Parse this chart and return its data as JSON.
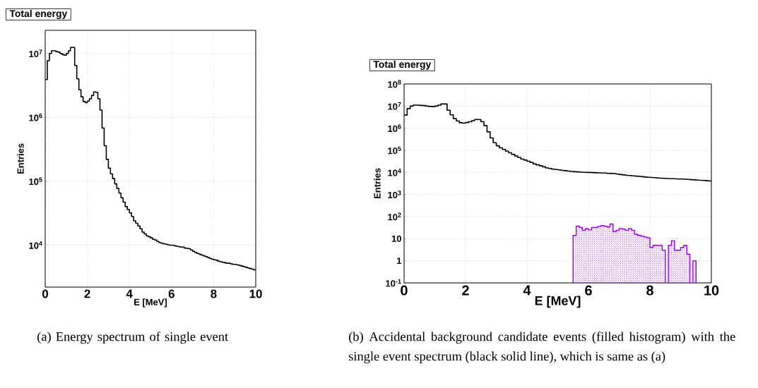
{
  "chart_data": [
    {
      "type": "step",
      "title": "Total energy",
      "xlabel": "E [MeV]",
      "ylabel": "Entries",
      "color": "#000000",
      "x": [
        0,
        0.1,
        0.2,
        0.3,
        0.4,
        0.5,
        0.6,
        0.7,
        0.8,
        0.9,
        1,
        1.1,
        1.2,
        1.3,
        1.4,
        1.5,
        1.6,
        1.7,
        1.8,
        1.9,
        2,
        2.1,
        2.2,
        2.3,
        2.4,
        2.5,
        2.6,
        2.7,
        2.8,
        2.9,
        3,
        3.1,
        3.2,
        3.3,
        3.4,
        3.5,
        3.6,
        3.7,
        3.8,
        3.9,
        4,
        4.1,
        4.2,
        4.3,
        4.4,
        4.5,
        4.6,
        4.7,
        4.8,
        4.9,
        5,
        5.1,
        5.2,
        5.3,
        5.4,
        5.5,
        5.6,
        5.7,
        5.8,
        5.9,
        6,
        6.1,
        6.2,
        6.3,
        6.4,
        6.5,
        6.6,
        6.7,
        6.8,
        6.9,
        7,
        7.1,
        7.2,
        7.3,
        7.4,
        7.5,
        7.6,
        7.7,
        7.8,
        7.9,
        8,
        8.1,
        8.2,
        8.3,
        8.4,
        8.5,
        8.6,
        8.7,
        8.8,
        8.9,
        9,
        9.1,
        9.2,
        9.3,
        9.4,
        9.5,
        9.6,
        9.7,
        9.8,
        9.9,
        10
      ],
      "values": [
        3900000.0,
        7700000.0,
        10000000.0,
        11000000.0,
        11000000.0,
        10700000.0,
        10500000.0,
        10000000.0,
        9600000.0,
        9400000.0,
        10000000.0,
        11000000.0,
        12400000.0,
        12400000.0,
        6500000.0,
        4000000.0,
        2700000.0,
        2100000.0,
        1770000.0,
        1700000.0,
        1800000.0,
        1950000.0,
        2200000.0,
        2500000.0,
        2450000.0,
        1950000.0,
        1300000.0,
        680000.0,
        360000.0,
        220000.0,
        160000.0,
        130000.0,
        110000.0,
        91000.0,
        77000.0,
        65000.0,
        55000.0,
        47000.0,
        40000.0,
        36000.0,
        32000.0,
        28000.0,
        24000.0,
        22000.0,
        20000.0,
        18000.0,
        16000.0,
        15000.0,
        14000.0,
        13500.0,
        13000.0,
        12300.0,
        12000.0,
        11400.0,
        11000.0,
        10700.0,
        10500.0,
        10300.0,
        10100.0,
        10000.0,
        10000.0,
        9800.0,
        9600.0,
        9500.0,
        9300.0,
        9300.0,
        9000.0,
        8900.0,
        8800.0,
        8400.0,
        8000.0,
        7700.0,
        7400.0,
        7200.0,
        7000.0,
        6800.0,
        6600.0,
        6400.0,
        6200.0,
        6000.0,
        5900.0,
        5800.0,
        5600.0,
        5500.0,
        5400.0,
        5300.0,
        5200.0,
        5200.0,
        5100.0,
        5000.0,
        5000.0,
        4900.0,
        4800.0,
        4700.0,
        4600.0,
        4500.0,
        4400.0,
        4300.0,
        4200.0,
        4100.0,
        4100.0
      ],
      "xlim": [
        0,
        10
      ],
      "ylim": [
        2200,
        23000000.0
      ],
      "xticks": [
        0,
        2,
        4,
        6,
        8,
        10
      ],
      "yticks": [
        {
          "value": 10000,
          "label": "10$^{4}$"
        },
        {
          "value": 100000,
          "label": "10$^{5}$"
        },
        {
          "value": 1000000,
          "label": "10$^{6}$"
        },
        {
          "value": 10000000,
          "label": "10$^{7}$"
        }
      ],
      "log": true,
      "grid": true,
      "annotations": [
        "(a) Energy spectrum of single event"
      ]
    },
    {
      "type": "histogram",
      "title": "Total energy",
      "xlabel": "E [MeV]",
      "ylabel": "Entries",
      "series": [
        {
          "type": "step",
          "color": "#000000",
          "x": [
            0,
            0.1,
            0.2,
            0.3,
            0.4,
            0.5,
            0.6,
            0.7,
            0.8,
            0.9,
            1,
            1.1,
            1.2,
            1.3,
            1.4,
            1.5,
            1.6,
            1.7,
            1.8,
            1.9,
            2,
            2.1,
            2.2,
            2.3,
            2.4,
            2.5,
            2.6,
            2.7,
            2.8,
            2.9,
            3,
            3.1,
            3.2,
            3.3,
            3.4,
            3.5,
            3.6,
            3.7,
            3.8,
            3.9,
            4,
            4.1,
            4.2,
            4.3,
            4.4,
            4.5,
            4.6,
            4.7,
            4.8,
            4.9,
            5,
            5.1,
            5.2,
            5.3,
            5.4,
            5.5,
            5.6,
            5.7,
            5.8,
            5.9,
            6,
            6.1,
            6.2,
            6.3,
            6.4,
            6.5,
            6.6,
            6.7,
            6.8,
            6.9,
            7,
            7.1,
            7.2,
            7.3,
            7.4,
            7.5,
            7.6,
            7.7,
            7.8,
            7.9,
            8,
            8.1,
            8.2,
            8.3,
            8.4,
            8.5,
            8.6,
            8.7,
            8.8,
            8.9,
            9,
            9.1,
            9.2,
            9.3,
            9.4,
            9.5,
            9.6,
            9.7,
            9.8,
            9.9,
            10
          ],
          "values": [
            3900000.0,
            7700000.0,
            10000000.0,
            11000000.0,
            11000000.0,
            10700000.0,
            10500000.0,
            10000000.0,
            9600000.0,
            9400000.0,
            10000000.0,
            11000000.0,
            12400000.0,
            12400000.0,
            6500000.0,
            4000000.0,
            2700000.0,
            2100000.0,
            1770000.0,
            1700000.0,
            1800000.0,
            1950000.0,
            2200000.0,
            2500000.0,
            2450000.0,
            1950000.0,
            1300000.0,
            680000.0,
            360000.0,
            220000.0,
            160000.0,
            130000.0,
            110000.0,
            91000.0,
            77000.0,
            65000.0,
            55000.0,
            47000.0,
            40000.0,
            36000.0,
            32000.0,
            28000.0,
            24000.0,
            22000.0,
            20000.0,
            18000.0,
            16000.0,
            15000.0,
            14000.0,
            13500.0,
            13000.0,
            12300.0,
            12000.0,
            11400.0,
            11000.0,
            10700.0,
            10500.0,
            10300.0,
            10100.0,
            10000.0,
            10000.0,
            9800.0,
            9600.0,
            9500.0,
            9300.0,
            9300.0,
            9000.0,
            8900.0,
            8800.0,
            8400.0,
            8000.0,
            7700.0,
            7400.0,
            7200.0,
            7000.0,
            6800.0,
            6600.0,
            6400.0,
            6200.0,
            6000.0,
            5900.0,
            5800.0,
            5600.0,
            5500.0,
            5400.0,
            5300.0,
            5200.0,
            5200.0,
            5100.0,
            5000.0,
            5000.0,
            4900.0,
            4800.0,
            4700.0,
            4600.0,
            4500.0,
            4400.0,
            4300.0,
            4200.0,
            4100.0,
            4100.0
          ]
        },
        {
          "color": "#9900ee",
          "bins": [
            5.5,
            5.6,
            5.7,
            5.8,
            5.9,
            6,
            6.1,
            6.2,
            6.3,
            6.4,
            6.5,
            6.6,
            6.7,
            6.8,
            6.9,
            7,
            7.1,
            7.2,
            7.3,
            7.4,
            7.5,
            7.6,
            7.7,
            7.8,
            7.9,
            8,
            8.1,
            8.2,
            8.3,
            8.4,
            8.5,
            8.6,
            8.7,
            8.8,
            8.9,
            9,
            9.1,
            9.2,
            9.3,
            9.4,
            9.5
          ],
          "values": [
            14,
            37,
            32,
            24,
            28,
            25,
            32,
            32,
            36,
            39,
            37,
            34,
            46,
            21,
            24,
            29,
            27,
            24,
            29,
            24,
            16,
            14,
            13,
            12,
            11,
            4,
            5,
            5,
            5,
            3,
            null,
            5,
            8,
            3,
            3,
            4,
            5,
            2,
            null,
            1
          ]
        }
      ],
      "xlim": [
        0,
        10
      ],
      "ylim": [
        0.1,
        100000000.0
      ],
      "xticks": [
        0,
        2,
        4,
        6,
        8,
        10
      ],
      "yticks": [
        {
          "value": 0.1,
          "label": "10$^{-1}$"
        },
        1,
        10,
        {
          "value": 100,
          "label": "10$^{2}$"
        },
        {
          "value": 1000,
          "label": "10$^{3}$"
        },
        {
          "value": 10000,
          "label": "10$^{4}$"
        },
        {
          "value": 100000,
          "label": "10$^{5}$"
        },
        {
          "value": 1000000,
          "label": "10$^{6}$"
        },
        {
          "value": 10000000,
          "label": "10$^{7}$"
        },
        {
          "value": 100000000,
          "label": "10$^{8}$"
        }
      ],
      "log": true,
      "grid": true,
      "annotations": [
        "(b) Accidental background candidate events (filled histogram) with the single event spectrum (black solid line), which is same as (a)"
      ]
    }
  ]
}
